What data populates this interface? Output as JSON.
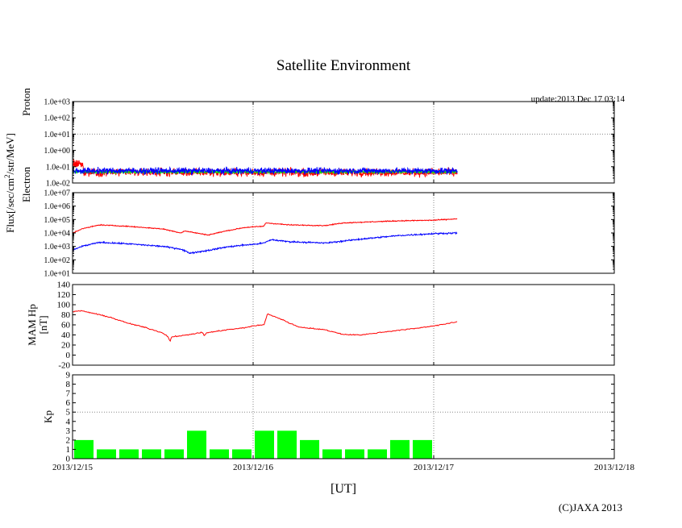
{
  "chart_data": {
    "type": "line",
    "title": "Satellite Environment",
    "update": "update:2013 Dec 17 03:14",
    "xlabel": "[UT]",
    "copyright": "(C)JAXA 2013",
    "shared_ylabel": "Flux[/sec/cm²/str/MeV]",
    "x_ticks": [
      "2013/12/15",
      "2013/12/16",
      "2013/12/17",
      "2013/12/18"
    ],
    "x_range_days": [
      0,
      3
    ],
    "data_end_day": 2.13,
    "panels": [
      {
        "id": "proton",
        "ylabel": "Proton",
        "scale": "log",
        "ylim_exp": [
          -2,
          3
        ],
        "tick_labels": [
          "1.0e+03",
          "1.0e+02",
          "1.0e+01",
          "1.0e+00",
          "1.0e-01",
          "1.0e-02"
        ],
        "tick_exps": [
          3,
          2,
          1,
          0,
          -1,
          -2
        ],
        "dotted_grid_exps": [
          1
        ],
        "series": [
          {
            "name": "proton-red",
            "color": "#ff0000",
            "center_exp": -1.35,
            "noise_exp": 0.35,
            "start_spike_exp": -0.85
          },
          {
            "name": "proton-green",
            "color": "#00ff00",
            "center_exp": -1.32,
            "noise_exp": 0.12
          },
          {
            "name": "proton-blue",
            "color": "#0000ff",
            "center_exp": -1.25,
            "noise_exp": 0.28
          }
        ]
      },
      {
        "id": "electron",
        "ylabel": "Electron",
        "scale": "log",
        "ylim_exp": [
          1,
          7
        ],
        "tick_labels": [
          "1.0e+07",
          "1.0e+06",
          "1.0e+05",
          "1.0e+04",
          "1.0e+03",
          "1.0e+02",
          "1.0e+01"
        ],
        "tick_exps": [
          7,
          6,
          5,
          4,
          3,
          2,
          1
        ],
        "dotted_grid_exps": [],
        "series": [
          {
            "name": "electron-red",
            "color": "#ff0000",
            "noise_exp": 0.05,
            "x": [
              0,
              0.05,
              0.15,
              0.3,
              0.5,
              0.6,
              0.62,
              0.75,
              0.85,
              0.95,
              1.0,
              1.06,
              1.07,
              1.2,
              1.4,
              1.5,
              1.6,
              1.8,
              2.0,
              2.13
            ],
            "y_exp": [
              4.0,
              4.3,
              4.6,
              4.5,
              4.3,
              4.0,
              4.15,
              3.85,
              4.15,
              4.4,
              4.45,
              4.5,
              4.75,
              4.6,
              4.55,
              4.75,
              4.8,
              4.9,
              4.95,
              5.05
            ]
          },
          {
            "name": "electron-blue",
            "color": "#0000ff",
            "noise_exp": 0.08,
            "x": [
              0,
              0.05,
              0.15,
              0.3,
              0.5,
              0.6,
              0.65,
              0.75,
              0.85,
              0.95,
              1.0,
              1.06,
              1.1,
              1.2,
              1.4,
              1.5,
              1.6,
              1.8,
              2.0,
              2.13
            ],
            "y_exp": [
              2.7,
              3.0,
              3.3,
              3.2,
              3.0,
              2.8,
              2.5,
              2.7,
              2.95,
              3.1,
              3.15,
              3.25,
              3.5,
              3.35,
              3.25,
              3.4,
              3.55,
              3.8,
              3.95,
              4.0
            ]
          }
        ]
      },
      {
        "id": "mam-hp",
        "ylabel": "MAM Hp",
        "ylabel2": "[nT]",
        "scale": "linear",
        "ylim": [
          -20,
          140
        ],
        "tick_labels": [
          "140",
          "120",
          "100",
          "80",
          "60",
          "40",
          "20",
          "0",
          "-20"
        ],
        "tick_values": [
          140,
          120,
          100,
          80,
          60,
          40,
          20,
          0,
          -20
        ],
        "dotted_grid_values": [],
        "series": [
          {
            "name": "mam-hp-red",
            "color": "#ff0000",
            "noise": 1.5,
            "x": [
              0,
              0.05,
              0.1,
              0.2,
              0.3,
              0.4,
              0.5,
              0.53,
              0.54,
              0.55,
              0.6,
              0.65,
              0.72,
              0.73,
              0.74,
              0.85,
              0.95,
              1.0,
              1.06,
              1.08,
              1.15,
              1.25,
              1.4,
              1.5,
              1.6,
              1.75,
              1.9,
              2.0,
              2.1,
              2.13
            ],
            "y": [
              86,
              88,
              84,
              76,
              64,
              55,
              44,
              36,
              27,
              37,
              38,
              41,
              45,
              38,
              44,
              50,
              54,
              58,
              60,
              82,
              72,
              56,
              50,
              41,
              40,
              47,
              53,
              58,
              64,
              66
            ]
          }
        ]
      },
      {
        "id": "kp",
        "ylabel": "Kp",
        "scale": "linear",
        "ylim": [
          0,
          9
        ],
        "tick_labels": [
          "9",
          "8",
          "7",
          "6",
          "5",
          "4",
          "3",
          "2",
          "1",
          "0"
        ],
        "tick_values": [
          9,
          8,
          7,
          6,
          5,
          4,
          3,
          2,
          1,
          0
        ],
        "dotted_grid_values": [
          5
        ],
        "bar_color": "#00ff00",
        "bar_width_days": 0.125,
        "values": [
          2,
          1,
          1,
          1,
          1,
          3,
          1,
          1,
          3,
          3,
          2,
          1,
          1,
          1,
          2,
          2
        ]
      }
    ]
  }
}
